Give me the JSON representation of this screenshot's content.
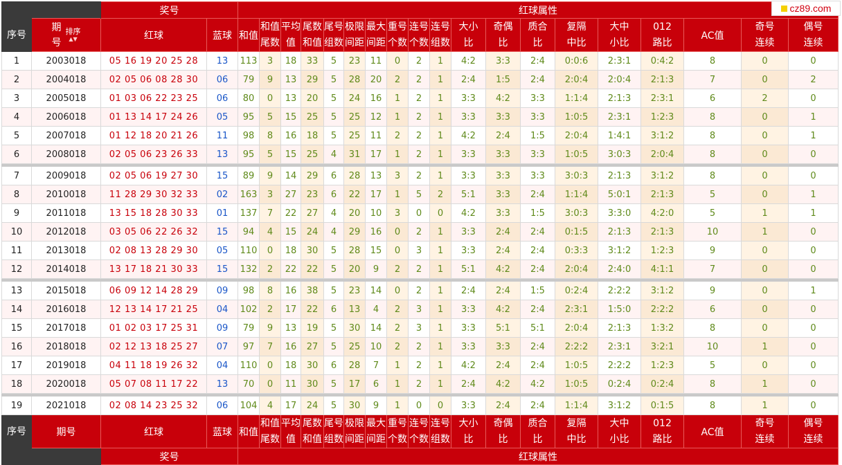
{
  "header": {
    "group_prize": "奖号",
    "group_attr": "红球属性",
    "col_index": "序号",
    "col_period_top": "期",
    "col_period_bottom": "号",
    "col_period_footer": "期号",
    "sort_label": "排序",
    "sort_arrows": "▲▼",
    "col_red": "红球",
    "col_blue": "蓝球",
    "col_sum": "和值",
    "col_sum_tail": [
      "和值",
      "尾数"
    ],
    "col_avg": [
      "平均",
      "值"
    ],
    "col_tail_sum": [
      "尾数",
      "和值"
    ],
    "col_tail_groups": [
      "尾号",
      "组数"
    ],
    "col_range": [
      "极限",
      "间距"
    ],
    "col_max_gap": [
      "最大",
      "间距"
    ],
    "col_repeat": [
      "重号",
      "个数"
    ],
    "col_consec": [
      "连号",
      "个数"
    ],
    "col_consec_groups": [
      "连号",
      "组数"
    ],
    "col_big_small": [
      "大小",
      "比"
    ],
    "col_odd_even": [
      "奇偶",
      "比"
    ],
    "col_prime": [
      "质合",
      "比"
    ],
    "col_repeat_gap": [
      "复隔",
      "中比"
    ],
    "col_bms": [
      "大中",
      "小比"
    ],
    "col_012": [
      "012",
      "路比"
    ],
    "col_ac": "AC值",
    "col_odd_run": [
      "奇号",
      "连续"
    ],
    "col_even_run": [
      "偶号",
      "连续"
    ]
  },
  "logo": {
    "text": "cz89.com"
  },
  "rows": [
    {
      "idx": "1",
      "period": "2003018",
      "red": "05 16 19 20 25 28",
      "blue": "13",
      "sum": "113",
      "st": "3",
      "avg": "18",
      "ts": "33",
      "tg": "5",
      "rg": "23",
      "mg": "11",
      "rp": "0",
      "cn": "2",
      "cg": "1",
      "bs": "4:2",
      "oe": "3:3",
      "pr": "2:4",
      "rgp": "0:0:6",
      "bms": "2:3:1",
      "r012": "0:4:2",
      "ac": "8",
      "odd": "0",
      "even": "0"
    },
    {
      "idx": "2",
      "period": "2004018",
      "red": "02 05 06 08 28 30",
      "blue": "06",
      "sum": "79",
      "st": "9",
      "avg": "13",
      "ts": "29",
      "tg": "5",
      "rg": "28",
      "mg": "20",
      "rp": "2",
      "cn": "2",
      "cg": "1",
      "bs": "2:4",
      "oe": "1:5",
      "pr": "2:4",
      "rgp": "2:0:4",
      "bms": "2:0:4",
      "r012": "2:1:3",
      "ac": "7",
      "odd": "0",
      "even": "2"
    },
    {
      "idx": "3",
      "period": "2005018",
      "red": "01 03 06 22 23 25",
      "blue": "06",
      "sum": "80",
      "st": "0",
      "avg": "13",
      "ts": "20",
      "tg": "5",
      "rg": "24",
      "mg": "16",
      "rp": "1",
      "cn": "2",
      "cg": "1",
      "bs": "3:3",
      "oe": "4:2",
      "pr": "3:3",
      "rgp": "1:1:4",
      "bms": "2:1:3",
      "r012": "2:3:1",
      "ac": "6",
      "odd": "2",
      "even": "0"
    },
    {
      "idx": "4",
      "period": "2006018",
      "red": "01 13 14 17 24 26",
      "blue": "05",
      "sum": "95",
      "st": "5",
      "avg": "15",
      "ts": "25",
      "tg": "5",
      "rg": "25",
      "mg": "12",
      "rp": "1",
      "cn": "2",
      "cg": "1",
      "bs": "3:3",
      "oe": "3:3",
      "pr": "3:3",
      "rgp": "1:0:5",
      "bms": "2:3:1",
      "r012": "1:2:3",
      "ac": "8",
      "odd": "0",
      "even": "1"
    },
    {
      "idx": "5",
      "period": "2007018",
      "red": "01 12 18 20 21 26",
      "blue": "11",
      "sum": "98",
      "st": "8",
      "avg": "16",
      "ts": "18",
      "tg": "5",
      "rg": "25",
      "mg": "11",
      "rp": "2",
      "cn": "2",
      "cg": "1",
      "bs": "4:2",
      "oe": "2:4",
      "pr": "1:5",
      "rgp": "2:0:4",
      "bms": "1:4:1",
      "r012": "3:1:2",
      "ac": "8",
      "odd": "0",
      "even": "1"
    },
    {
      "idx": "6",
      "period": "2008018",
      "red": "02 05 06 23 26 33",
      "blue": "13",
      "sum": "95",
      "st": "5",
      "avg": "15",
      "ts": "25",
      "tg": "4",
      "rg": "31",
      "mg": "17",
      "rp": "1",
      "cn": "2",
      "cg": "1",
      "bs": "3:3",
      "oe": "3:3",
      "pr": "3:3",
      "rgp": "1:0:5",
      "bms": "3:0:3",
      "r012": "2:0:4",
      "ac": "8",
      "odd": "0",
      "even": "0"
    },
    {
      "idx": "7",
      "period": "2009018",
      "red": "02 05 06 19 27 30",
      "blue": "15",
      "sum": "89",
      "st": "9",
      "avg": "14",
      "ts": "29",
      "tg": "6",
      "rg": "28",
      "mg": "13",
      "rp": "3",
      "cn": "2",
      "cg": "1",
      "bs": "3:3",
      "oe": "3:3",
      "pr": "3:3",
      "rgp": "3:0:3",
      "bms": "2:1:3",
      "r012": "3:1:2",
      "ac": "8",
      "odd": "0",
      "even": "0"
    },
    {
      "idx": "8",
      "period": "2010018",
      "red": "11 28 29 30 32 33",
      "blue": "02",
      "sum": "163",
      "st": "3",
      "avg": "27",
      "ts": "23",
      "tg": "6",
      "rg": "22",
      "mg": "17",
      "rp": "1",
      "cn": "5",
      "cg": "2",
      "bs": "5:1",
      "oe": "3:3",
      "pr": "2:4",
      "rgp": "1:1:4",
      "bms": "5:0:1",
      "r012": "2:1:3",
      "ac": "5",
      "odd": "0",
      "even": "1"
    },
    {
      "idx": "9",
      "period": "2011018",
      "red": "13 15 18 28 30 33",
      "blue": "01",
      "sum": "137",
      "st": "7",
      "avg": "22",
      "ts": "27",
      "tg": "4",
      "rg": "20",
      "mg": "10",
      "rp": "3",
      "cn": "0",
      "cg": "0",
      "bs": "4:2",
      "oe": "3:3",
      "pr": "1:5",
      "rgp": "3:0:3",
      "bms": "3:3:0",
      "r012": "4:2:0",
      "ac": "5",
      "odd": "1",
      "even": "1"
    },
    {
      "idx": "10",
      "period": "2012018",
      "red": "03 05 06 22 26 32",
      "blue": "15",
      "sum": "94",
      "st": "4",
      "avg": "15",
      "ts": "24",
      "tg": "4",
      "rg": "29",
      "mg": "16",
      "rp": "0",
      "cn": "2",
      "cg": "1",
      "bs": "3:3",
      "oe": "2:4",
      "pr": "2:4",
      "rgp": "0:1:5",
      "bms": "2:1:3",
      "r012": "2:1:3",
      "ac": "10",
      "odd": "1",
      "even": "0"
    },
    {
      "idx": "11",
      "period": "2013018",
      "red": "02 08 13 28 29 30",
      "blue": "05",
      "sum": "110",
      "st": "0",
      "avg": "18",
      "ts": "30",
      "tg": "5",
      "rg": "28",
      "mg": "15",
      "rp": "0",
      "cn": "3",
      "cg": "1",
      "bs": "3:3",
      "oe": "2:4",
      "pr": "2:4",
      "rgp": "0:3:3",
      "bms": "3:1:2",
      "r012": "1:2:3",
      "ac": "9",
      "odd": "0",
      "even": "0"
    },
    {
      "idx": "12",
      "period": "2014018",
      "red": "13 17 18 21 30 33",
      "blue": "15",
      "sum": "132",
      "st": "2",
      "avg": "22",
      "ts": "22",
      "tg": "5",
      "rg": "20",
      "mg": "9",
      "rp": "2",
      "cn": "2",
      "cg": "1",
      "bs": "5:1",
      "oe": "4:2",
      "pr": "2:4",
      "rgp": "2:0:4",
      "bms": "2:4:0",
      "r012": "4:1:1",
      "ac": "7",
      "odd": "0",
      "even": "0"
    },
    {
      "idx": "13",
      "period": "2015018",
      "red": "06 09 12 14 28 29",
      "blue": "09",
      "sum": "98",
      "st": "8",
      "avg": "16",
      "ts": "38",
      "tg": "5",
      "rg": "23",
      "mg": "14",
      "rp": "0",
      "cn": "2",
      "cg": "1",
      "bs": "2:4",
      "oe": "2:4",
      "pr": "1:5",
      "rgp": "0:2:4",
      "bms": "2:2:2",
      "r012": "3:1:2",
      "ac": "9",
      "odd": "0",
      "even": "1"
    },
    {
      "idx": "14",
      "period": "2016018",
      "red": "12 13 14 17 21 25",
      "blue": "04",
      "sum": "102",
      "st": "2",
      "avg": "17",
      "ts": "22",
      "tg": "6",
      "rg": "13",
      "mg": "4",
      "rp": "2",
      "cn": "3",
      "cg": "1",
      "bs": "3:3",
      "oe": "4:2",
      "pr": "2:4",
      "rgp": "2:3:1",
      "bms": "1:5:0",
      "r012": "2:2:2",
      "ac": "6",
      "odd": "0",
      "even": "0"
    },
    {
      "idx": "15",
      "period": "2017018",
      "red": "01 02 03 17 25 31",
      "blue": "09",
      "sum": "79",
      "st": "9",
      "avg": "13",
      "ts": "19",
      "tg": "5",
      "rg": "30",
      "mg": "14",
      "rp": "2",
      "cn": "3",
      "cg": "1",
      "bs": "3:3",
      "oe": "5:1",
      "pr": "5:1",
      "rgp": "2:0:4",
      "bms": "2:1:3",
      "r012": "1:3:2",
      "ac": "8",
      "odd": "0",
      "even": "0"
    },
    {
      "idx": "16",
      "period": "2018018",
      "red": "02 12 13 18 25 27",
      "blue": "07",
      "sum": "97",
      "st": "7",
      "avg": "16",
      "ts": "27",
      "tg": "5",
      "rg": "25",
      "mg": "10",
      "rp": "2",
      "cn": "2",
      "cg": "1",
      "bs": "3:3",
      "oe": "3:3",
      "pr": "2:4",
      "rgp": "2:2:2",
      "bms": "2:3:1",
      "r012": "3:2:1",
      "ac": "10",
      "odd": "1",
      "even": "0"
    },
    {
      "idx": "17",
      "period": "2019018",
      "red": "04 11 18 19 26 32",
      "blue": "04",
      "sum": "110",
      "st": "0",
      "avg": "18",
      "ts": "30",
      "tg": "6",
      "rg": "28",
      "mg": "7",
      "rp": "1",
      "cn": "2",
      "cg": "1",
      "bs": "4:2",
      "oe": "2:4",
      "pr": "2:4",
      "rgp": "1:0:5",
      "bms": "2:2:2",
      "r012": "1:2:3",
      "ac": "5",
      "odd": "0",
      "even": "0"
    },
    {
      "idx": "18",
      "period": "2020018",
      "red": "05 07 08 11 17 22",
      "blue": "13",
      "sum": "70",
      "st": "0",
      "avg": "11",
      "ts": "30",
      "tg": "5",
      "rg": "17",
      "mg": "6",
      "rp": "1",
      "cn": "2",
      "cg": "1",
      "bs": "2:4",
      "oe": "4:2",
      "pr": "4:2",
      "rgp": "1:0:5",
      "bms": "0:2:4",
      "r012": "0:2:4",
      "ac": "8",
      "odd": "1",
      "even": "0"
    },
    {
      "idx": "19",
      "period": "2021018",
      "red": "02 08 14 23 25 32",
      "blue": "06",
      "sum": "104",
      "st": "4",
      "avg": "17",
      "ts": "24",
      "tg": "5",
      "rg": "30",
      "mg": "9",
      "rp": "1",
      "cn": "0",
      "cg": "0",
      "bs": "3:3",
      "oe": "2:4",
      "pr": "2:4",
      "rgp": "1:1:4",
      "bms": "3:1:2",
      "r012": "0:1:5",
      "ac": "8",
      "odd": "1",
      "even": "0"
    }
  ],
  "separators_after": [
    6,
    12,
    18
  ]
}
